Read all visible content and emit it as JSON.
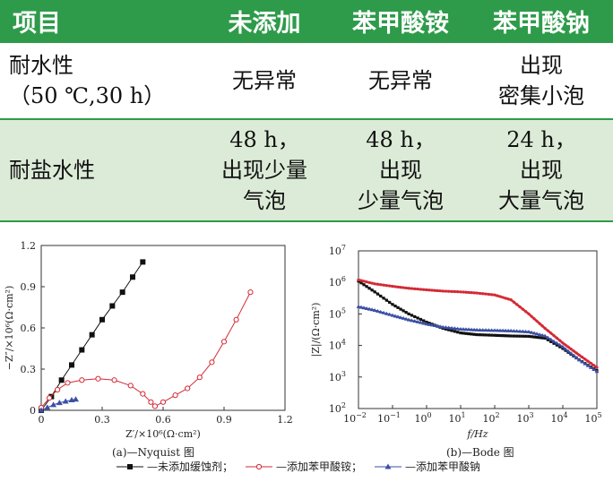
{
  "table": {
    "headers": [
      "项目",
      "未添加",
      "苯甲酸铵",
      "苯甲酸钠"
    ],
    "rows": [
      {
        "item_lines": [
          "耐水性",
          "（50 ℃,30 h）"
        ],
        "cells": [
          [
            "无异常"
          ],
          [
            "无异常"
          ],
          [
            "出现",
            "密集小泡"
          ]
        ]
      },
      {
        "item_lines": [
          "耐盐水性"
        ],
        "cells": [
          [
            "48 h，",
            "出现少量",
            "气泡"
          ],
          [
            "48 h，",
            "出现",
            "少量气泡"
          ],
          [
            "24 h，",
            "出现",
            "大量气泡"
          ]
        ]
      }
    ]
  },
  "chart_data": [
    {
      "type": "line",
      "subtype": "nyquist",
      "xlabel": "Z′/×10⁶(Ω·cm²)",
      "ylabel": "−Z″/×10⁶(Ω·cm²)",
      "xlim": [
        0,
        1.2
      ],
      "ylim": [
        0,
        1.2
      ],
      "xticks": [
        "0",
        "0.3",
        "0.6",
        "0.9",
        "1.2"
      ],
      "yticks": [
        "0",
        "0.3",
        "0.6",
        "0.9",
        "1.2"
      ],
      "caption": "(a)—Nyquist 图",
      "series": [
        {
          "name": "未添加缓蚀剂",
          "color": "#111111",
          "marker": "square",
          "x": [
            0.0,
            0.05,
            0.1,
            0.15,
            0.2,
            0.25,
            0.3,
            0.35,
            0.4,
            0.45,
            0.5
          ],
          "y": [
            0.0,
            0.1,
            0.22,
            0.33,
            0.44,
            0.55,
            0.66,
            0.76,
            0.86,
            0.97,
            1.08
          ]
        },
        {
          "name": "添加苯甲酸铵",
          "color": "#d42a35",
          "marker": "circle",
          "x": [
            0.0,
            0.04,
            0.08,
            0.13,
            0.2,
            0.28,
            0.36,
            0.44,
            0.5,
            0.54,
            0.56,
            0.6,
            0.66,
            0.72,
            0.78,
            0.84,
            0.9,
            0.96,
            1.03
          ],
          "y": [
            0.02,
            0.09,
            0.15,
            0.2,
            0.22,
            0.23,
            0.22,
            0.18,
            0.12,
            0.06,
            0.03,
            0.06,
            0.11,
            0.16,
            0.24,
            0.35,
            0.5,
            0.66,
            0.86
          ]
        },
        {
          "name": "添加苯甲酸钠",
          "color": "#3b4fa3",
          "marker": "triangle",
          "x": [
            0.0,
            0.03,
            0.06,
            0.09,
            0.12,
            0.15,
            0.17
          ],
          "y": [
            0.0,
            0.02,
            0.04,
            0.055,
            0.065,
            0.075,
            0.08
          ]
        }
      ]
    },
    {
      "type": "line",
      "subtype": "bode",
      "xscale": "log",
      "yscale": "log",
      "xlabel": "f/Hz",
      "ylabel": "|Z|/(Ω·cm²)",
      "xlim": [
        0.01,
        100000
      ],
      "ylim": [
        100,
        10000000
      ],
      "xtick_exponents": [
        -2,
        -1,
        0,
        1,
        2,
        3,
        4,
        5
      ],
      "ytick_exponents": [
        2,
        3,
        4,
        5,
        6,
        7
      ],
      "caption": "(b)—Bode 图",
      "series": [
        {
          "name": "未添加缓蚀剂",
          "color": "#111111",
          "marker": "square",
          "f": [
            0.01,
            0.03,
            0.1,
            0.3,
            1,
            3,
            10,
            30,
            100,
            300,
            1000,
            3000,
            10000,
            30000,
            100000
          ],
          "z": [
            1100000,
            500000,
            200000,
            100000,
            55000,
            35000,
            25000,
            22000,
            21000,
            20000,
            19500,
            17000,
            8000,
            3500,
            1600
          ]
        },
        {
          "name": "添加苯甲酸铵",
          "color": "#d42a35",
          "marker": "circle",
          "f": [
            0.01,
            0.03,
            0.1,
            0.3,
            1,
            3,
            10,
            30,
            100,
            300,
            1000,
            3000,
            10000,
            30000,
            100000
          ],
          "z": [
            1200000,
            900000,
            750000,
            650000,
            580000,
            530000,
            500000,
            460000,
            400000,
            280000,
            100000,
            35000,
            12000,
            5000,
            2000
          ]
        },
        {
          "name": "添加苯甲酸钠",
          "color": "#3b4fa3",
          "marker": "triangle",
          "f": [
            0.01,
            0.03,
            0.1,
            0.3,
            1,
            3,
            10,
            30,
            100,
            300,
            1000,
            3000,
            10000,
            30000,
            100000
          ],
          "z": [
            170000,
            130000,
            90000,
            65000,
            48000,
            38000,
            33000,
            31000,
            30000,
            29000,
            27000,
            20000,
            9000,
            3500,
            1500
          ]
        }
      ]
    }
  ],
  "legend": [
    {
      "label": "未添加缓蚀剂；",
      "color": "#111111",
      "marker": "square"
    },
    {
      "label": "添加苯甲酸铵；",
      "color": "#d42a35",
      "marker": "circle"
    },
    {
      "label": "添加苯甲酸钠",
      "color": "#3b4fa3",
      "marker": "triangle"
    }
  ]
}
